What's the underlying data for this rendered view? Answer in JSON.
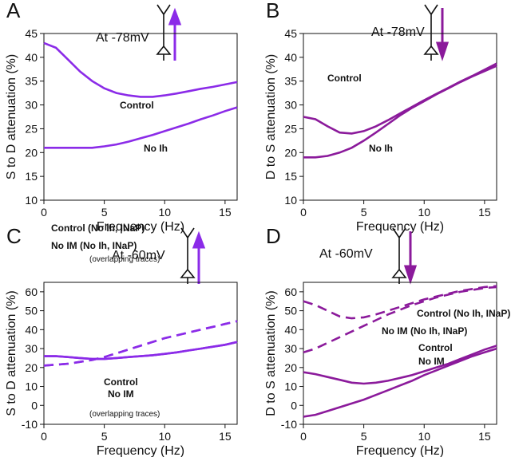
{
  "chart_data": [
    {
      "type": "line",
      "panel": "A",
      "title": "At -78mV",
      "xlabel": "Frequency (Hz)",
      "ylabel": "S to D attenuation (%)",
      "xlim": [
        0,
        16
      ],
      "xticks": [
        0,
        5,
        10,
        15
      ],
      "ylim": [
        10,
        45
      ],
      "yticks": [
        10,
        15,
        20,
        25,
        30,
        35,
        40,
        45
      ],
      "x": [
        0,
        1,
        2,
        3,
        4,
        5,
        6,
        7,
        8,
        9,
        10,
        11,
        12,
        13,
        14,
        15,
        16
      ],
      "series": [
        {
          "name": "Control",
          "color": "#8b2be8",
          "dashed": false,
          "values": [
            43,
            42,
            39.5,
            37,
            35,
            33.5,
            32.5,
            32,
            31.7,
            31.7,
            32,
            32.4,
            32.9,
            33.4,
            33.8,
            34.3,
            34.8
          ]
        },
        {
          "name": "No Ih",
          "color": "#8b2be8",
          "dashed": false,
          "values": [
            21,
            21,
            21,
            21,
            21,
            21.3,
            21.7,
            22.3,
            23,
            23.7,
            24.5,
            25.3,
            26.1,
            27,
            27.8,
            28.7,
            29.5
          ]
        }
      ]
    },
    {
      "type": "line",
      "panel": "B",
      "title": "At -78mV",
      "xlabel": "Frequency (Hz)",
      "ylabel": "D to S attenuation (%)",
      "xlim": [
        0,
        16
      ],
      "xticks": [
        0,
        5,
        10,
        15
      ],
      "ylim": [
        10,
        45
      ],
      "yticks": [
        10,
        15,
        20,
        25,
        30,
        35,
        40,
        45
      ],
      "x": [
        0,
        1,
        2,
        3,
        4,
        5,
        6,
        7,
        8,
        9,
        10,
        11,
        12,
        13,
        14,
        15,
        16
      ],
      "series": [
        {
          "name": "Control",
          "color": "#8b1a9b",
          "dashed": false,
          "values": [
            27.5,
            27,
            25.5,
            24.2,
            24,
            24.5,
            25.5,
            26.8,
            28.2,
            29.6,
            31,
            32.3,
            33.6,
            34.9,
            36.1,
            37.4,
            38.7
          ]
        },
        {
          "name": "No Ih",
          "color": "#8b1a9b",
          "dashed": false,
          "values": [
            19,
            19,
            19.3,
            20,
            21,
            22.5,
            24.2,
            26,
            27.8,
            29.4,
            30.8,
            32.2,
            33.5,
            34.8,
            36,
            37.1,
            38.2
          ]
        }
      ]
    },
    {
      "type": "line",
      "panel": "C",
      "title": "At -60mV",
      "xlabel": "Frequency (Hz)",
      "ylabel": "S to D attenuation (%)",
      "xlim": [
        0,
        16
      ],
      "xticks": [
        0,
        5,
        10,
        15
      ],
      "ylim": [
        -10,
        65
      ],
      "yticks": [
        -10,
        0,
        10,
        20,
        30,
        40,
        50,
        60
      ],
      "x": [
        0,
        1,
        2,
        3,
        4,
        5,
        6,
        7,
        8,
        9,
        10,
        11,
        12,
        13,
        14,
        15,
        16
      ],
      "annotations": [
        "(overlapping traces)",
        "(overlapping traces)"
      ],
      "series": [
        {
          "name": "Control",
          "color": "#8b2be8",
          "dashed": false,
          "values": [
            26,
            26,
            25.5,
            25,
            24.5,
            24.5,
            25,
            25.5,
            26,
            26.5,
            27.2,
            28,
            29,
            30,
            31,
            32,
            33.5
          ]
        },
        {
          "name": "No IM",
          "color": "#8b2be8",
          "dashed": false,
          "values": [
            26,
            26,
            25.5,
            25,
            24.5,
            24.5,
            25,
            25.5,
            26,
            26.5,
            27.2,
            28,
            29,
            30,
            31,
            32,
            33.5
          ]
        },
        {
          "name": "Control (No Ih, INaP)",
          "color": "#8b2be8",
          "dashed": true,
          "values": [
            21,
            21.5,
            22,
            23,
            24,
            25.5,
            27.5,
            29.5,
            31.5,
            33.5,
            35.5,
            37,
            38.5,
            40,
            41.5,
            43,
            44.5
          ]
        },
        {
          "name": "No IM (No Ih, INaP)",
          "color": "#8b2be8",
          "dashed": true,
          "values": [
            21,
            21.5,
            22,
            23,
            24,
            25.5,
            27.5,
            29.5,
            31.5,
            33.5,
            35.5,
            37,
            38.5,
            40,
            41.5,
            43,
            44.5
          ]
        }
      ]
    },
    {
      "type": "line",
      "panel": "D",
      "title": "At -60mV",
      "xlabel": "Frequency (Hz)",
      "ylabel": "D to S attenuation (%)",
      "xlim": [
        0,
        16
      ],
      "xticks": [
        0,
        5,
        10,
        15
      ],
      "ylim": [
        -10,
        65
      ],
      "yticks": [
        -10,
        0,
        10,
        20,
        30,
        40,
        50,
        60
      ],
      "x": [
        0,
        1,
        2,
        3,
        4,
        5,
        6,
        7,
        8,
        9,
        10,
        11,
        12,
        13,
        14,
        15,
        16
      ],
      "series": [
        {
          "name": "Control",
          "color": "#8b1a9b",
          "dashed": false,
          "values": [
            17.5,
            16.5,
            15,
            13.5,
            12,
            11.5,
            12,
            13,
            14.5,
            16,
            18,
            20,
            22,
            24.5,
            27,
            29.5,
            31.5
          ]
        },
        {
          "name": "No IM",
          "color": "#8b1a9b",
          "dashed": false,
          "values": [
            -6,
            -5,
            -3,
            -1,
            1,
            3,
            5.5,
            8,
            10.5,
            13,
            16,
            18.5,
            21,
            23.5,
            26,
            28,
            30
          ]
        },
        {
          "name": "Control (No Ih, INaP)",
          "color": "#8b1a9b",
          "dashed": true,
          "values": [
            55,
            53,
            50,
            47,
            46,
            46.5,
            48,
            50,
            52,
            54,
            56,
            57.5,
            59,
            60.5,
            61.5,
            62.5,
            63
          ]
        },
        {
          "name": "No IM (No Ih, INaP)",
          "color": "#8b1a9b",
          "dashed": true,
          "values": [
            28,
            30,
            33,
            36,
            39,
            42,
            45,
            48,
            50.5,
            53,
            55,
            57,
            58.5,
            60,
            61,
            62,
            62.5
          ]
        }
      ]
    }
  ]
}
